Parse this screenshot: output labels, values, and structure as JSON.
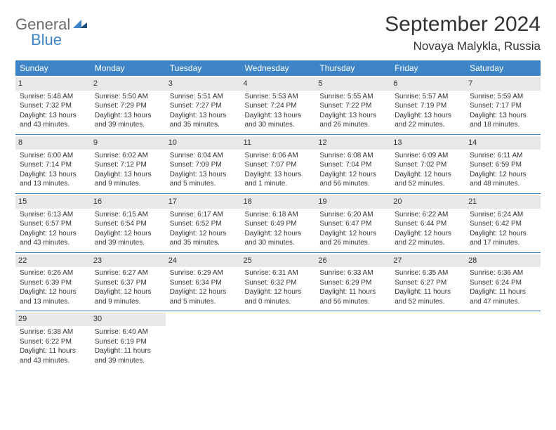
{
  "logo": {
    "word1": "General",
    "word2": "Blue"
  },
  "title": "September 2024",
  "location": "Novaya Malykla, Russia",
  "colors": {
    "header_bg": "#3d85c6",
    "header_text": "#ffffff",
    "daynum_bg": "#e8e8e8",
    "row_border": "#3d85c6",
    "text": "#333333",
    "logo_gray": "#6b6b6b",
    "logo_blue": "#3d85c6",
    "background": "#ffffff"
  },
  "fonts": {
    "title_size": 30,
    "location_size": 17,
    "weekday_size": 12,
    "daynum_size": 11,
    "cell_size": 10
  },
  "weekdays": [
    "Sunday",
    "Monday",
    "Tuesday",
    "Wednesday",
    "Thursday",
    "Friday",
    "Saturday"
  ],
  "days": {
    "1": {
      "sunrise": "Sunrise: 5:48 AM",
      "sunset": "Sunset: 7:32 PM",
      "daylight": "Daylight: 13 hours and 43 minutes."
    },
    "2": {
      "sunrise": "Sunrise: 5:50 AM",
      "sunset": "Sunset: 7:29 PM",
      "daylight": "Daylight: 13 hours and 39 minutes."
    },
    "3": {
      "sunrise": "Sunrise: 5:51 AM",
      "sunset": "Sunset: 7:27 PM",
      "daylight": "Daylight: 13 hours and 35 minutes."
    },
    "4": {
      "sunrise": "Sunrise: 5:53 AM",
      "sunset": "Sunset: 7:24 PM",
      "daylight": "Daylight: 13 hours and 30 minutes."
    },
    "5": {
      "sunrise": "Sunrise: 5:55 AM",
      "sunset": "Sunset: 7:22 PM",
      "daylight": "Daylight: 13 hours and 26 minutes."
    },
    "6": {
      "sunrise": "Sunrise: 5:57 AM",
      "sunset": "Sunset: 7:19 PM",
      "daylight": "Daylight: 13 hours and 22 minutes."
    },
    "7": {
      "sunrise": "Sunrise: 5:59 AM",
      "sunset": "Sunset: 7:17 PM",
      "daylight": "Daylight: 13 hours and 18 minutes."
    },
    "8": {
      "sunrise": "Sunrise: 6:00 AM",
      "sunset": "Sunset: 7:14 PM",
      "daylight": "Daylight: 13 hours and 13 minutes."
    },
    "9": {
      "sunrise": "Sunrise: 6:02 AM",
      "sunset": "Sunset: 7:12 PM",
      "daylight": "Daylight: 13 hours and 9 minutes."
    },
    "10": {
      "sunrise": "Sunrise: 6:04 AM",
      "sunset": "Sunset: 7:09 PM",
      "daylight": "Daylight: 13 hours and 5 minutes."
    },
    "11": {
      "sunrise": "Sunrise: 6:06 AM",
      "sunset": "Sunset: 7:07 PM",
      "daylight": "Daylight: 13 hours and 1 minute."
    },
    "12": {
      "sunrise": "Sunrise: 6:08 AM",
      "sunset": "Sunset: 7:04 PM",
      "daylight": "Daylight: 12 hours and 56 minutes."
    },
    "13": {
      "sunrise": "Sunrise: 6:09 AM",
      "sunset": "Sunset: 7:02 PM",
      "daylight": "Daylight: 12 hours and 52 minutes."
    },
    "14": {
      "sunrise": "Sunrise: 6:11 AM",
      "sunset": "Sunset: 6:59 PM",
      "daylight": "Daylight: 12 hours and 48 minutes."
    },
    "15": {
      "sunrise": "Sunrise: 6:13 AM",
      "sunset": "Sunset: 6:57 PM",
      "daylight": "Daylight: 12 hours and 43 minutes."
    },
    "16": {
      "sunrise": "Sunrise: 6:15 AM",
      "sunset": "Sunset: 6:54 PM",
      "daylight": "Daylight: 12 hours and 39 minutes."
    },
    "17": {
      "sunrise": "Sunrise: 6:17 AM",
      "sunset": "Sunset: 6:52 PM",
      "daylight": "Daylight: 12 hours and 35 minutes."
    },
    "18": {
      "sunrise": "Sunrise: 6:18 AM",
      "sunset": "Sunset: 6:49 PM",
      "daylight": "Daylight: 12 hours and 30 minutes."
    },
    "19": {
      "sunrise": "Sunrise: 6:20 AM",
      "sunset": "Sunset: 6:47 PM",
      "daylight": "Daylight: 12 hours and 26 minutes."
    },
    "20": {
      "sunrise": "Sunrise: 6:22 AM",
      "sunset": "Sunset: 6:44 PM",
      "daylight": "Daylight: 12 hours and 22 minutes."
    },
    "21": {
      "sunrise": "Sunrise: 6:24 AM",
      "sunset": "Sunset: 6:42 PM",
      "daylight": "Daylight: 12 hours and 17 minutes."
    },
    "22": {
      "sunrise": "Sunrise: 6:26 AM",
      "sunset": "Sunset: 6:39 PM",
      "daylight": "Daylight: 12 hours and 13 minutes."
    },
    "23": {
      "sunrise": "Sunrise: 6:27 AM",
      "sunset": "Sunset: 6:37 PM",
      "daylight": "Daylight: 12 hours and 9 minutes."
    },
    "24": {
      "sunrise": "Sunrise: 6:29 AM",
      "sunset": "Sunset: 6:34 PM",
      "daylight": "Daylight: 12 hours and 5 minutes."
    },
    "25": {
      "sunrise": "Sunrise: 6:31 AM",
      "sunset": "Sunset: 6:32 PM",
      "daylight": "Daylight: 12 hours and 0 minutes."
    },
    "26": {
      "sunrise": "Sunrise: 6:33 AM",
      "sunset": "Sunset: 6:29 PM",
      "daylight": "Daylight: 11 hours and 56 minutes."
    },
    "27": {
      "sunrise": "Sunrise: 6:35 AM",
      "sunset": "Sunset: 6:27 PM",
      "daylight": "Daylight: 11 hours and 52 minutes."
    },
    "28": {
      "sunrise": "Sunrise: 6:36 AM",
      "sunset": "Sunset: 6:24 PM",
      "daylight": "Daylight: 11 hours and 47 minutes."
    },
    "29": {
      "sunrise": "Sunrise: 6:38 AM",
      "sunset": "Sunset: 6:22 PM",
      "daylight": "Daylight: 11 hours and 43 minutes."
    },
    "30": {
      "sunrise": "Sunrise: 6:40 AM",
      "sunset": "Sunset: 6:19 PM",
      "daylight": "Daylight: 11 hours and 39 minutes."
    }
  },
  "layout": {
    "weeks": [
      [
        1,
        2,
        3,
        4,
        5,
        6,
        7
      ],
      [
        8,
        9,
        10,
        11,
        12,
        13,
        14
      ],
      [
        15,
        16,
        17,
        18,
        19,
        20,
        21
      ],
      [
        22,
        23,
        24,
        25,
        26,
        27,
        28
      ],
      [
        29,
        30,
        null,
        null,
        null,
        null,
        null
      ]
    ]
  }
}
